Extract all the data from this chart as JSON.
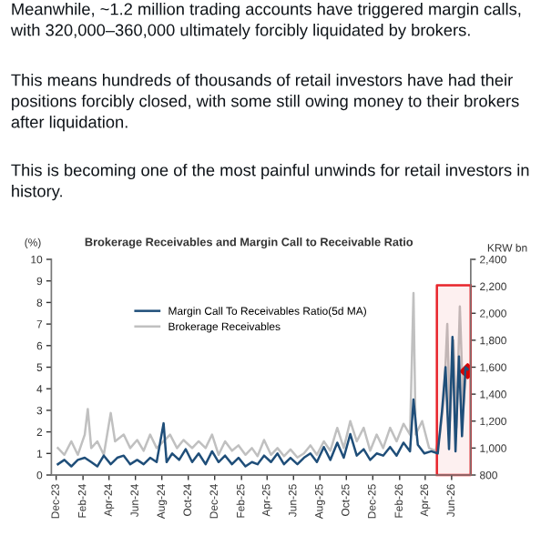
{
  "chart_data": {
    "type": "line",
    "annotations": [
      "Meanwhile, ~1.2 million trading accounts have triggered margin calls, with 320,000–360,000 ultimately forcibly liquidated by brokers.",
      "This means hundreds of thousands of retail investors have had their positions forcibly closed, with some still owing money to their brokers after liquidation.",
      "This is becoming one of the most painful unwinds for retail investors in history."
    ],
    "title": "Brokerage Receivables and Margin Call to Receivable Ratio",
    "ylabel": "(%)",
    "y2label": "KRW bn",
    "xlim": [
      "2023-11-20",
      "2026-07-15"
    ],
    "xticks": [
      {
        "value": "2023-12-01",
        "label": "Dec-23"
      },
      {
        "value": "2024-02-01",
        "label": "Feb-24"
      },
      {
        "value": "2024-04-01",
        "label": "Apr-24"
      },
      {
        "value": "2024-06-01",
        "label": "Jun-24"
      },
      {
        "value": "2024-08-01",
        "label": "Aug-24"
      },
      {
        "value": "2024-10-01",
        "label": "Oct-24"
      },
      {
        "value": "2024-12-01",
        "label": "Dec-24"
      },
      {
        "value": "2025-02-01",
        "label": "Feb-25"
      },
      {
        "value": "2025-04-01",
        "label": "Apr-25"
      },
      {
        "value": "2025-06-01",
        "label": "Jun-25"
      },
      {
        "value": "2025-08-01",
        "label": "Aug-25"
      },
      {
        "value": "2025-10-01",
        "label": "Oct-25"
      },
      {
        "value": "2025-12-01",
        "label": "Dec-25"
      },
      {
        "value": "2026-02-01",
        "label": "Feb-26"
      },
      {
        "value": "2026-04-01",
        "label": "Apr-26"
      },
      {
        "value": "2026-06-01",
        "label": "Jun-26"
      }
    ],
    "ylim": [
      0,
      10
    ],
    "yticks": [
      0,
      1,
      2,
      3,
      4,
      5,
      6,
      7,
      8,
      9,
      10
    ],
    "y2lim": [
      800,
      2400
    ],
    "y2ticks": [
      800,
      {
        "value": 1000,
        "label": "1,000"
      },
      {
        "value": 1200,
        "label": "1,200"
      },
      {
        "value": 1400,
        "label": "1,400"
      },
      {
        "value": 1600,
        "label": "1,600"
      },
      {
        "value": 1800,
        "label": "1,800"
      },
      {
        "value": 2000,
        "label": "2,000"
      },
      {
        "value": 2200,
        "label": "2,200"
      },
      {
        "value": 2400,
        "label": "2,400"
      }
    ],
    "grid": false,
    "legend": "top left",
    "bands": [
      {
        "axis": "x",
        "from": "2026-04-28",
        "to": "2026-07-15",
        "color": "#e8242b"
      }
    ],
    "series": [
      {
        "name": "Brokerage Receivables",
        "color": "#c0c0c0",
        "axis": "y2",
        "x": [
          "2023-12-05",
          "2023-12-20",
          "2024-01-05",
          "2024-01-20",
          "2024-02-05",
          "2024-02-12",
          "2024-02-20",
          "2024-03-05",
          "2024-03-20",
          "2024-04-05",
          "2024-04-15",
          "2024-05-05",
          "2024-05-20",
          "2024-06-05",
          "2024-06-20",
          "2024-07-05",
          "2024-07-20",
          "2024-08-05",
          "2024-08-20",
          "2024-09-05",
          "2024-09-20",
          "2024-10-10",
          "2024-10-25",
          "2024-11-10",
          "2024-11-25",
          "2024-12-10",
          "2024-12-25",
          "2025-01-10",
          "2025-01-25",
          "2025-02-10",
          "2025-02-25",
          "2025-03-10",
          "2025-03-25",
          "2025-04-10",
          "2025-04-25",
          "2025-05-10",
          "2025-05-25",
          "2025-06-10",
          "2025-06-25",
          "2025-07-10",
          "2025-07-25",
          "2025-08-10",
          "2025-08-25",
          "2025-09-10",
          "2025-09-25",
          "2025-10-10",
          "2025-10-25",
          "2025-11-10",
          "2025-11-25",
          "2025-12-10",
          "2025-12-25",
          "2026-01-10",
          "2026-01-25",
          "2026-02-10",
          "2026-02-25",
          "2026-03-05",
          "2026-03-10",
          "2026-03-25",
          "2026-04-10",
          "2026-04-25",
          "2026-05-05",
          "2026-05-15",
          "2026-05-22",
          "2026-05-28",
          "2026-06-05",
          "2026-06-12",
          "2026-06-20",
          "2026-06-28",
          "2026-07-05",
          "2026-07-08"
        ],
        "values": [
          1000,
          950,
          1050,
          950,
          1100,
          1290,
          1000,
          1050,
          950,
          1260,
          1050,
          1100,
          1000,
          1060,
          980,
          1100,
          1000,
          1050,
          1100,
          1000,
          1060,
          1000,
          1050,
          1000,
          1100,
          950,
          1050,
          980,
          1020,
          950,
          1000,
          940,
          1060,
          950,
          1000,
          940,
          990,
          930,
          960,
          1020,
          950,
          1050,
          980,
          1150,
          1000,
          1200,
          1050,
          1150,
          980,
          1100,
          1000,
          1150,
          1050,
          1180,
          1100,
          2150,
          1100,
          1200,
          1000,
          980,
          1100,
          1400,
          1920,
          1200,
          1800,
          1150,
          2050,
          1300,
          1600,
          1570
        ]
      },
      {
        "name": "Margin Call To Receivables Ratio(5d MA)",
        "color": "#1f4e79",
        "axis": "y",
        "x": [
          "2023-12-05",
          "2023-12-20",
          "2024-01-05",
          "2024-01-20",
          "2024-02-05",
          "2024-02-20",
          "2024-03-05",
          "2024-03-20",
          "2024-04-05",
          "2024-04-20",
          "2024-05-05",
          "2024-05-20",
          "2024-06-05",
          "2024-06-20",
          "2024-07-05",
          "2024-07-20",
          "2024-08-05",
          "2024-08-12",
          "2024-08-25",
          "2024-09-10",
          "2024-09-25",
          "2024-10-10",
          "2024-10-25",
          "2024-11-10",
          "2024-11-25",
          "2024-12-10",
          "2024-12-25",
          "2025-01-10",
          "2025-01-25",
          "2025-02-10",
          "2025-02-25",
          "2025-03-10",
          "2025-03-25",
          "2025-04-10",
          "2025-04-25",
          "2025-05-10",
          "2025-05-25",
          "2025-06-10",
          "2025-06-25",
          "2025-07-10",
          "2025-07-25",
          "2025-08-10",
          "2025-08-25",
          "2025-09-10",
          "2025-09-25",
          "2025-10-10",
          "2025-10-25",
          "2025-11-10",
          "2025-11-25",
          "2025-12-10",
          "2025-12-25",
          "2026-01-10",
          "2026-01-25",
          "2026-02-10",
          "2026-02-25",
          "2026-03-05",
          "2026-03-15",
          "2026-03-30",
          "2026-04-15",
          "2026-04-30",
          "2026-05-10",
          "2026-05-18",
          "2026-05-26",
          "2026-06-03",
          "2026-06-10",
          "2026-06-18",
          "2026-06-25",
          "2026-07-03",
          "2026-07-08"
        ],
        "values": [
          0.5,
          0.7,
          0.4,
          0.7,
          0.8,
          0.6,
          0.4,
          0.9,
          0.5,
          0.8,
          0.9,
          0.5,
          0.7,
          0.5,
          0.8,
          0.6,
          2.4,
          0.6,
          1.0,
          0.7,
          1.2,
          0.6,
          1.0,
          0.5,
          1.1,
          0.6,
          0.9,
          0.5,
          0.8,
          0.4,
          0.6,
          0.5,
          0.9,
          0.6,
          1.0,
          0.5,
          0.8,
          0.5,
          0.8,
          1.0,
          0.6,
          1.3,
          0.7,
          1.5,
          0.8,
          1.9,
          0.9,
          1.2,
          0.7,
          1.0,
          0.9,
          1.3,
          0.9,
          1.5,
          1.1,
          3.5,
          1.4,
          1.0,
          1.1,
          1.0,
          3.0,
          5.0,
          1.2,
          6.4,
          1.1,
          5.5,
          1.8,
          5.0,
          4.9
        ]
      },
      {
        "type": "scatter",
        "color": "#d40000",
        "axis": "y2",
        "marker": "diamond",
        "x": [
          "2026-07-08"
        ],
        "values": [
          1570
        ]
      }
    ]
  }
}
